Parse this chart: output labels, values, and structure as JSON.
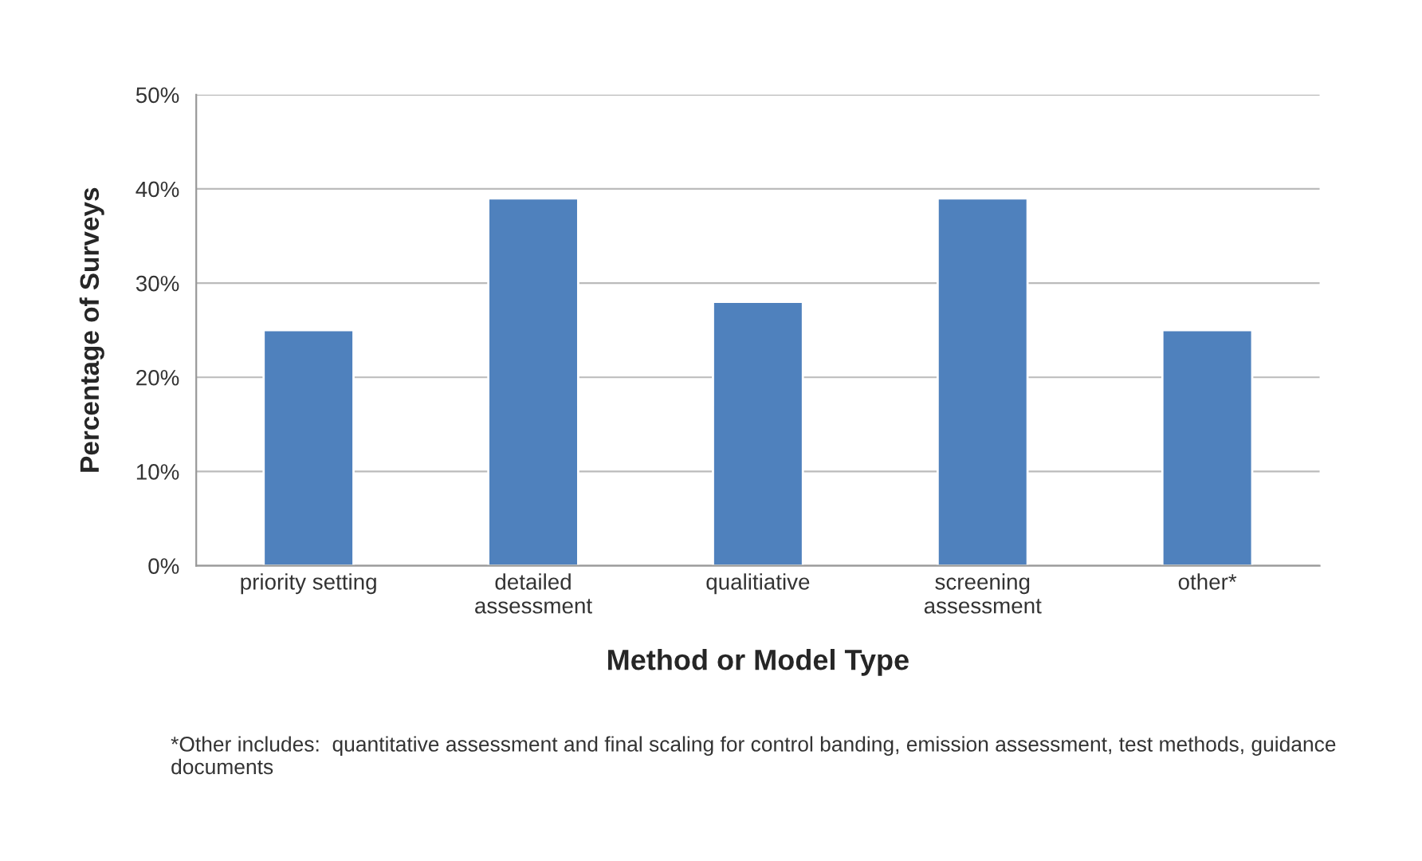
{
  "chart_data": {
    "type": "bar",
    "categories": [
      "priority setting",
      "detailed\nassessment",
      "qualitiative",
      "screening\nassessment",
      "other*"
    ],
    "values": [
      25,
      39,
      28,
      39,
      25
    ],
    "color": "#4f81bd",
    "xlabel": "Method or Model Type",
    "ylabel": "Percentage of Surveys",
    "ylim": [
      0,
      50
    ],
    "yticks": [
      {
        "value": 0,
        "label": "0%"
      },
      {
        "value": 10,
        "label": "10%"
      },
      {
        "value": 20,
        "label": "20%"
      },
      {
        "value": 30,
        "label": "30%"
      },
      {
        "value": 40,
        "label": "40%"
      },
      {
        "value": 50,
        "label": "50%"
      }
    ],
    "grid": "y",
    "annotations": [
      "*Other includes:  quantitative assessment and final scaling for control banding, emission assessment, test methods, guidance documents"
    ]
  }
}
